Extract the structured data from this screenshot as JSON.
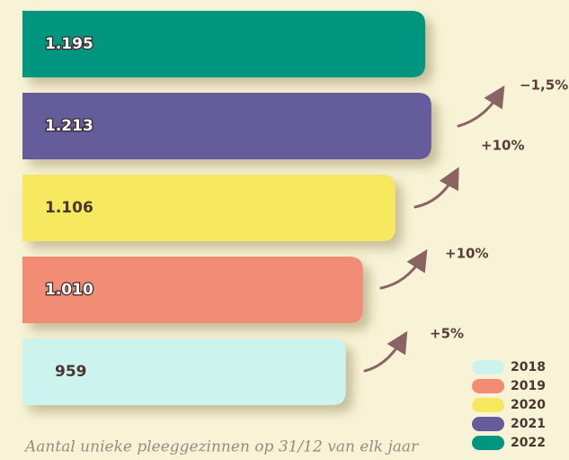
{
  "chart_data": {
    "type": "bar",
    "orientation": "horizontal",
    "categories": [
      "2018",
      "2019",
      "2020",
      "2021",
      "2022"
    ],
    "values": [
      959,
      1010,
      1106,
      1213,
      1195
    ],
    "value_labels": [
      "959",
      "1.010",
      "1.106",
      "1.213",
      "1.195"
    ],
    "colors": [
      "#cdf3ef",
      "#f28c74",
      "#f6e85e",
      "#655c9c",
      "#00957f"
    ],
    "annotations": [
      "+5%",
      "+10%",
      "+10%",
      "−1,5%"
    ],
    "caption": "Aantal unieke pleeggezinnen op 31/12 van elk jaar"
  }
}
